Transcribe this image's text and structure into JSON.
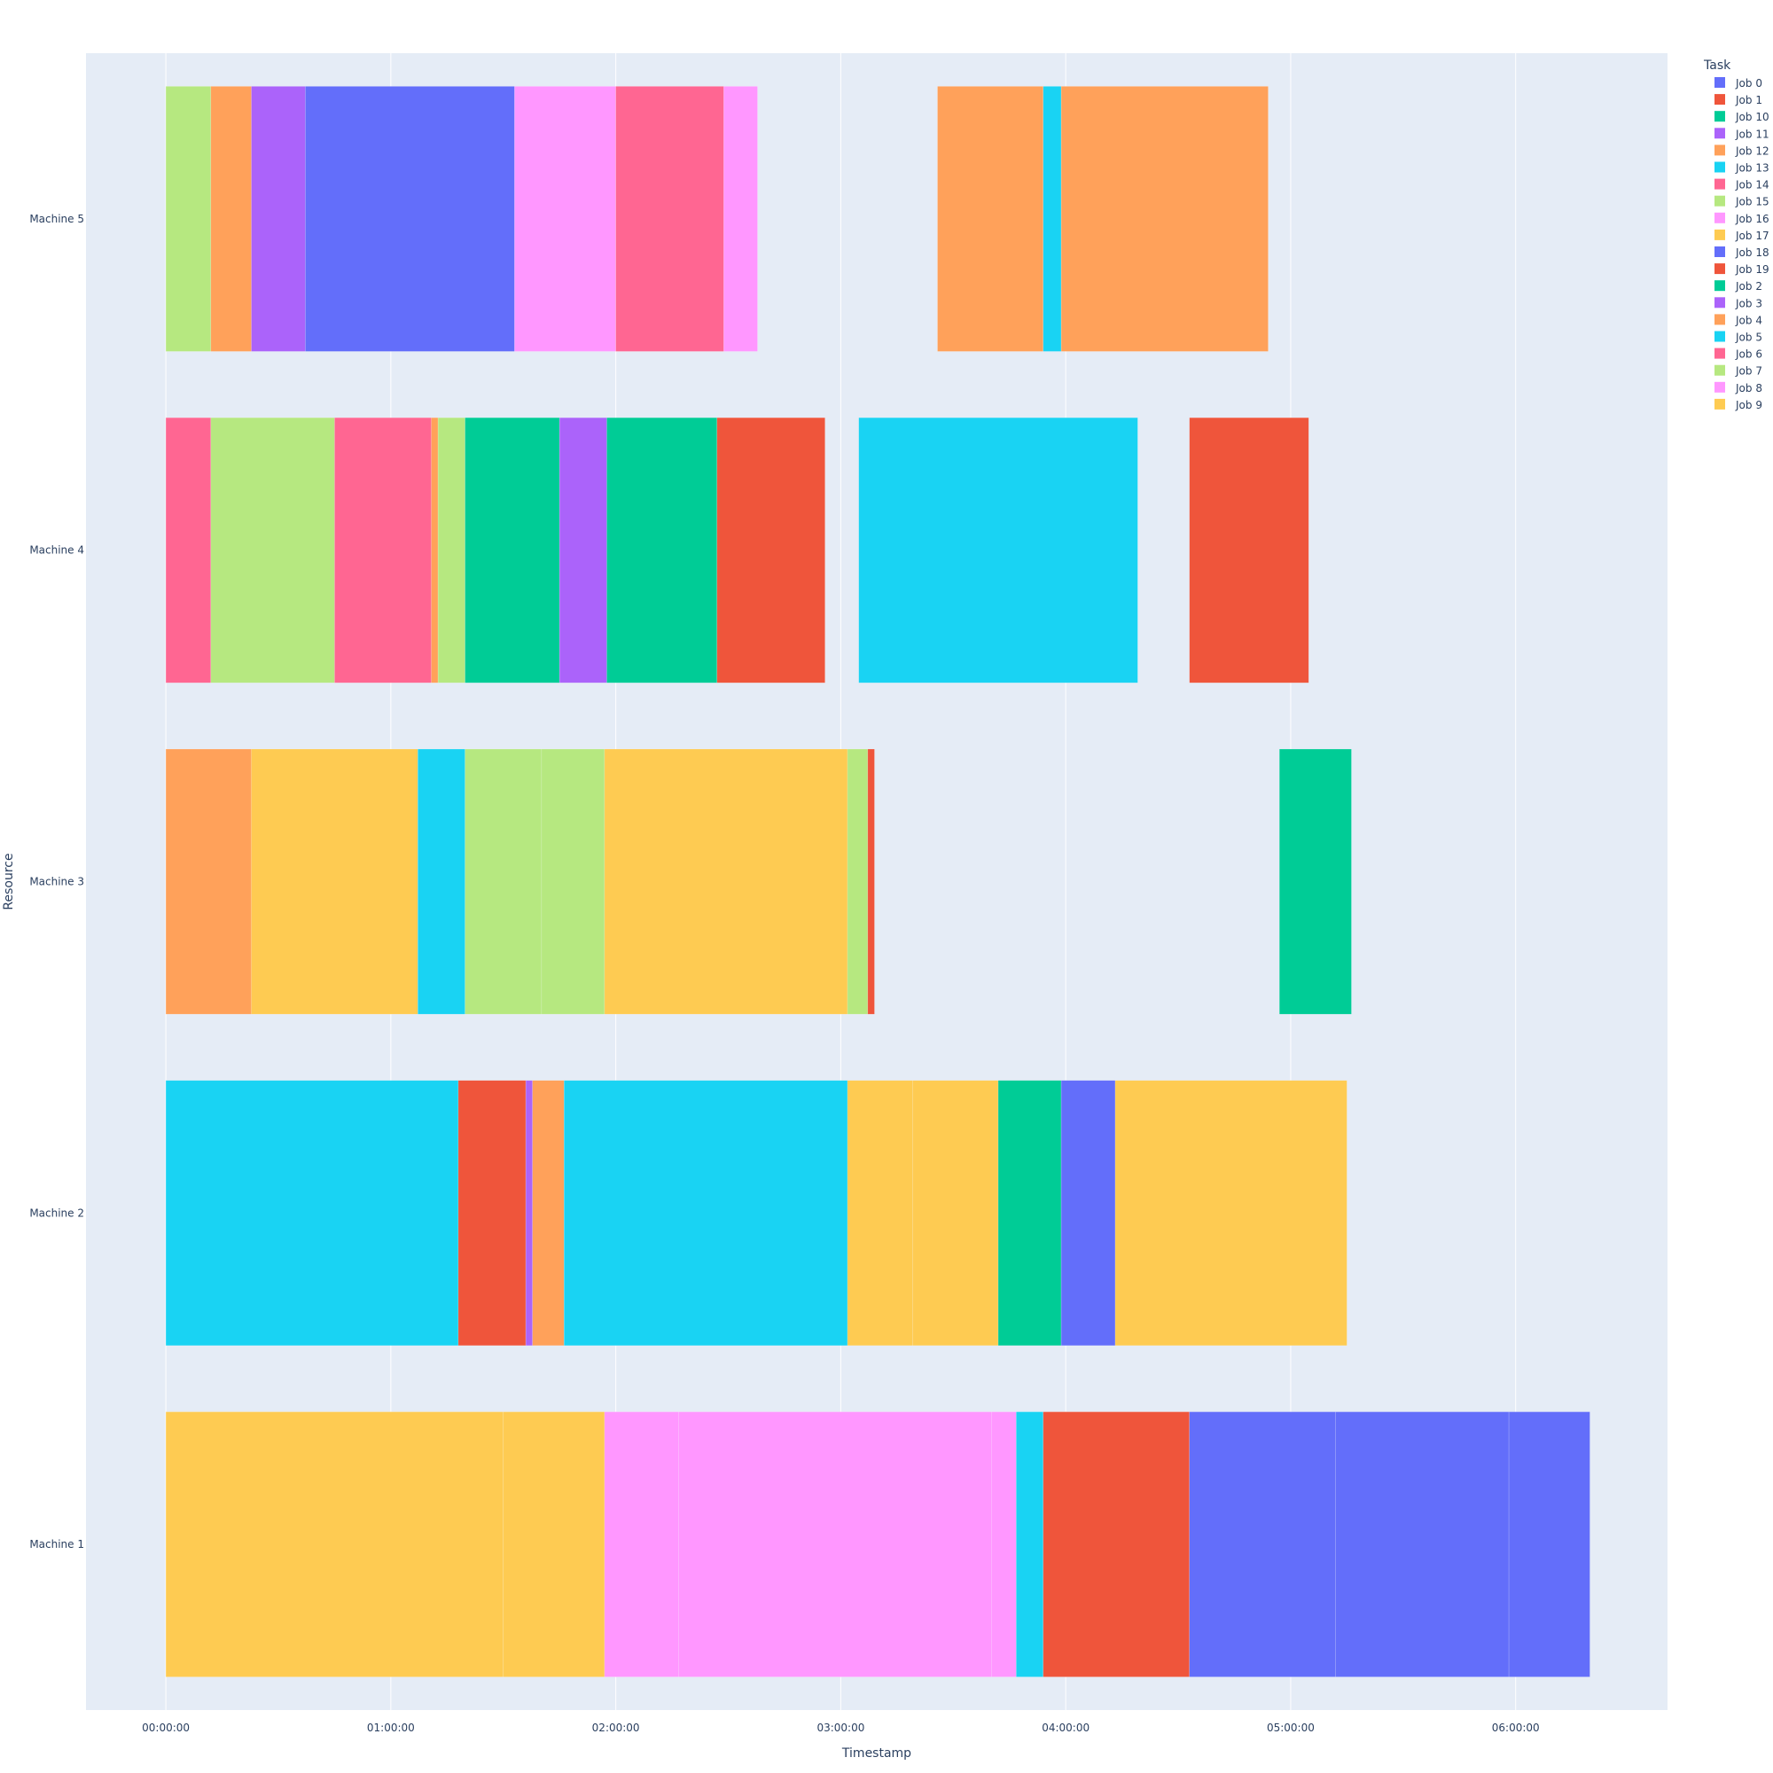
{
  "chart_data": {
    "type": "gantt",
    "xlabel": "Timestamp",
    "ylabel": "Resource",
    "x_unit": "hours",
    "xlim": [
      -0.355,
      6.675
    ],
    "x_ticks": [
      {
        "value": 0,
        "label": "00:00:00"
      },
      {
        "value": 1,
        "label": "01:00:00"
      },
      {
        "value": 2,
        "label": "02:00:00"
      },
      {
        "value": 3,
        "label": "03:00:00"
      },
      {
        "value": 4,
        "label": "04:00:00"
      },
      {
        "value": 5,
        "label": "05:00:00"
      },
      {
        "value": 6,
        "label": "06:00:00"
      }
    ],
    "categories": [
      "Machine 1",
      "Machine 2",
      "Machine 3",
      "Machine 4",
      "Machine 5"
    ],
    "grid": true,
    "legend": {
      "title": "Task",
      "placement": "top-right",
      "entries": [
        {
          "name": "Job 0",
          "color": "#636efa"
        },
        {
          "name": "Job 1",
          "color": "#ef553b"
        },
        {
          "name": "Job 10",
          "color": "#00cc96"
        },
        {
          "name": "Job 11",
          "color": "#ab63fa"
        },
        {
          "name": "Job 12",
          "color": "#ffa15a"
        },
        {
          "name": "Job 13",
          "color": "#19d3f3"
        },
        {
          "name": "Job 14",
          "color": "#ff6692"
        },
        {
          "name": "Job 15",
          "color": "#b6e880"
        },
        {
          "name": "Job 16",
          "color": "#ff97ff"
        },
        {
          "name": "Job 17",
          "color": "#fecb52"
        },
        {
          "name": "Job 18",
          "color": "#636efa"
        },
        {
          "name": "Job 19",
          "color": "#ef553b"
        },
        {
          "name": "Job 2",
          "color": "#00cc96"
        },
        {
          "name": "Job 3",
          "color": "#ab63fa"
        },
        {
          "name": "Job 4",
          "color": "#ffa15a"
        },
        {
          "name": "Job 5",
          "color": "#19d3f3"
        },
        {
          "name": "Job 6",
          "color": "#ff6692"
        },
        {
          "name": "Job 7",
          "color": "#b6e880"
        },
        {
          "name": "Job 8",
          "color": "#ff97ff"
        },
        {
          "name": "Job 9",
          "color": "#fecb52"
        }
      ]
    },
    "tasks": [
      {
        "resource": "Machine 5",
        "start": 0.0,
        "end": 0.2,
        "color": "#b6e880"
      },
      {
        "resource": "Machine 5",
        "start": 0.2,
        "end": 0.38,
        "color": "#ffa15a"
      },
      {
        "resource": "Machine 5",
        "start": 0.38,
        "end": 0.62,
        "color": "#ab63fa"
      },
      {
        "resource": "Machine 5",
        "start": 0.62,
        "end": 1.55,
        "color": "#636efa"
      },
      {
        "resource": "Machine 5",
        "start": 1.55,
        "end": 2.0,
        "color": "#ff97ff"
      },
      {
        "resource": "Machine 5",
        "start": 2.0,
        "end": 2.48,
        "color": "#ff6692"
      },
      {
        "resource": "Machine 5",
        "start": 2.48,
        "end": 2.63,
        "color": "#ff97ff"
      },
      {
        "resource": "Machine 5",
        "start": 3.43,
        "end": 3.9,
        "color": "#ffa15a"
      },
      {
        "resource": "Machine 5",
        "start": 3.9,
        "end": 3.98,
        "color": "#19d3f3"
      },
      {
        "resource": "Machine 5",
        "start": 3.98,
        "end": 4.9,
        "color": "#ffa15a"
      },
      {
        "resource": "Machine 4",
        "start": 0.0,
        "end": 0.2,
        "color": "#ff6692"
      },
      {
        "resource": "Machine 4",
        "start": 0.2,
        "end": 0.75,
        "color": "#b6e880"
      },
      {
        "resource": "Machine 4",
        "start": 0.75,
        "end": 1.18,
        "color": "#ff6692"
      },
      {
        "resource": "Machine 4",
        "start": 1.18,
        "end": 1.21,
        "color": "#ffa15a"
      },
      {
        "resource": "Machine 4",
        "start": 1.21,
        "end": 1.33,
        "color": "#b6e880"
      },
      {
        "resource": "Machine 4",
        "start": 1.33,
        "end": 1.75,
        "color": "#00cc96"
      },
      {
        "resource": "Machine 4",
        "start": 1.75,
        "end": 1.96,
        "color": "#ab63fa"
      },
      {
        "resource": "Machine 4",
        "start": 1.96,
        "end": 2.45,
        "color": "#00cc96"
      },
      {
        "resource": "Machine 4",
        "start": 2.45,
        "end": 2.93,
        "color": "#ef553b"
      },
      {
        "resource": "Machine 4",
        "start": 3.08,
        "end": 4.32,
        "color": "#19d3f3"
      },
      {
        "resource": "Machine 4",
        "start": 4.55,
        "end": 5.08,
        "color": "#ef553b"
      },
      {
        "resource": "Machine 3",
        "start": 0.0,
        "end": 0.38,
        "color": "#ffa15a"
      },
      {
        "resource": "Machine 3",
        "start": 0.38,
        "end": 1.12,
        "color": "#fecb52"
      },
      {
        "resource": "Machine 3",
        "start": 1.12,
        "end": 1.33,
        "color": "#19d3f3"
      },
      {
        "resource": "Machine 3",
        "start": 1.33,
        "end": 1.67,
        "color": "#b6e880"
      },
      {
        "resource": "Machine 3",
        "start": 1.67,
        "end": 1.95,
        "color": "#b6e880"
      },
      {
        "resource": "Machine 3",
        "start": 1.95,
        "end": 3.03,
        "color": "#fecb52"
      },
      {
        "resource": "Machine 3",
        "start": 3.03,
        "end": 3.12,
        "color": "#b6e880"
      },
      {
        "resource": "Machine 3",
        "start": 3.12,
        "end": 3.15,
        "color": "#ef553b"
      },
      {
        "resource": "Machine 3",
        "start": 4.95,
        "end": 5.27,
        "color": "#00cc96"
      },
      {
        "resource": "Machine 2",
        "start": 0.0,
        "end": 1.3,
        "color": "#19d3f3"
      },
      {
        "resource": "Machine 2",
        "start": 1.3,
        "end": 1.6,
        "color": "#ef553b"
      },
      {
        "resource": "Machine 2",
        "start": 1.6,
        "end": 1.63,
        "color": "#ab63fa"
      },
      {
        "resource": "Machine 2",
        "start": 1.63,
        "end": 1.77,
        "color": "#ffa15a"
      },
      {
        "resource": "Machine 2",
        "start": 1.77,
        "end": 3.03,
        "color": "#19d3f3"
      },
      {
        "resource": "Machine 2",
        "start": 3.03,
        "end": 3.32,
        "color": "#fecb52"
      },
      {
        "resource": "Machine 2",
        "start": 3.32,
        "end": 3.7,
        "color": "#fecb52"
      },
      {
        "resource": "Machine 2",
        "start": 3.7,
        "end": 3.98,
        "color": "#00cc96"
      },
      {
        "resource": "Machine 2",
        "start": 3.98,
        "end": 4.22,
        "color": "#636efa"
      },
      {
        "resource": "Machine 2",
        "start": 4.22,
        "end": 5.25,
        "color": "#fecb52"
      },
      {
        "resource": "Machine 1",
        "start": 0.0,
        "end": 1.5,
        "color": "#fecb52"
      },
      {
        "resource": "Machine 1",
        "start": 1.5,
        "end": 1.95,
        "color": "#fecb52"
      },
      {
        "resource": "Machine 1",
        "start": 1.95,
        "end": 2.28,
        "color": "#ff97ff"
      },
      {
        "resource": "Machine 1",
        "start": 2.28,
        "end": 3.67,
        "color": "#ff97ff"
      },
      {
        "resource": "Machine 1",
        "start": 3.67,
        "end": 3.78,
        "color": "#ff97ff"
      },
      {
        "resource": "Machine 1",
        "start": 3.78,
        "end": 3.9,
        "color": "#19d3f3"
      },
      {
        "resource": "Machine 1",
        "start": 3.9,
        "end": 4.55,
        "color": "#ef553b"
      },
      {
        "resource": "Machine 1",
        "start": 4.55,
        "end": 5.2,
        "color": "#636efa"
      },
      {
        "resource": "Machine 1",
        "start": 5.2,
        "end": 5.97,
        "color": "#636efa"
      },
      {
        "resource": "Machine 1",
        "start": 5.97,
        "end": 6.33,
        "color": "#636efa"
      }
    ],
    "colors": {
      "plot_bg": "#e5ecf6",
      "gridline": "#ffffff",
      "text": "#2a3f5f"
    }
  }
}
